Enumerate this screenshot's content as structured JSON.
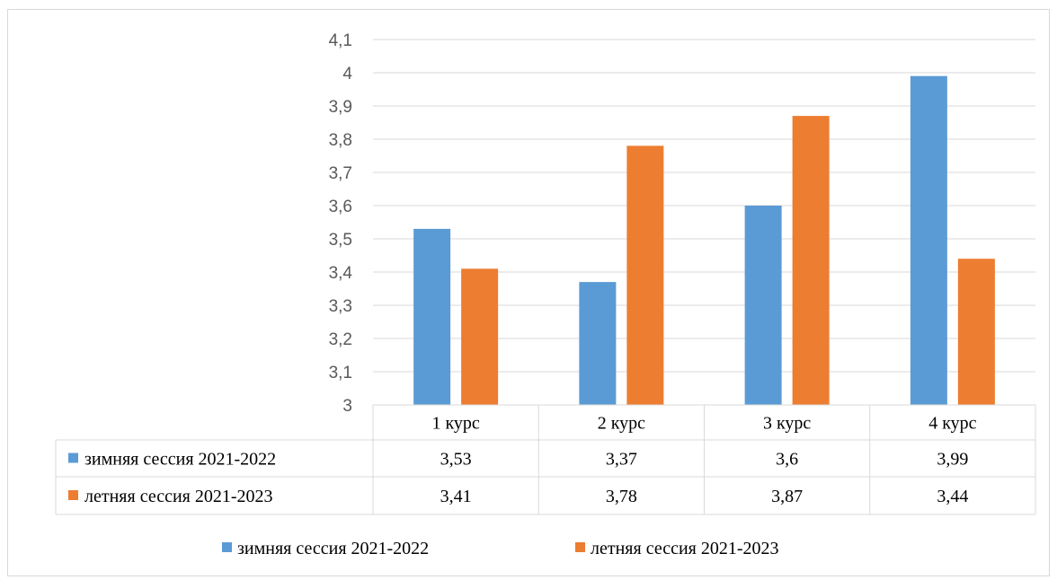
{
  "chart_data": {
    "type": "bar",
    "categories": [
      "1 курс",
      "2 курс",
      "3 курс",
      "4 курс"
    ],
    "series": [
      {
        "name": "зимняя сессия 2021-2022",
        "values": [
          3.53,
          3.37,
          3.6,
          3.99
        ],
        "color": "#5b9bd5"
      },
      {
        "name": "летняя сессия 2021-2023",
        "values": [
          3.41,
          3.78,
          3.87,
          3.44
        ],
        "color": "#ed7d31"
      }
    ],
    "table_values": [
      [
        "3,53",
        "3,37",
        "3,6",
        "3,99"
      ],
      [
        "3,41",
        "3,78",
        "3,87",
        "3,44"
      ]
    ],
    "yticks": [
      "3",
      "3,1",
      "3,2",
      "3,3",
      "3,4",
      "3,5",
      "3,6",
      "3,7",
      "3,8",
      "3,9",
      "4",
      "4,1"
    ],
    "ylim": [
      3,
      4.1
    ],
    "grid": true,
    "legend": "bottom",
    "data_table": true
  }
}
